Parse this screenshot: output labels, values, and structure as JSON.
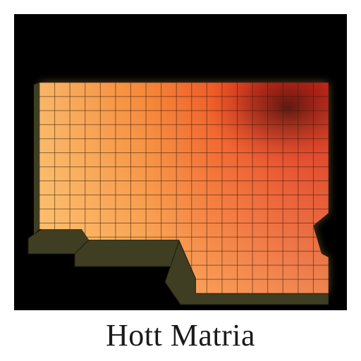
{
  "caption": "Hott Matria",
  "heatmap": {
    "rows": 15,
    "cols": 19,
    "grid_on": true,
    "colors": {
      "background": "#000000",
      "base_warm": "#f7a54f",
      "mid_orange": "#f26a2c",
      "hot_red": "#e0311f",
      "hot_spot": "#5a0e0a",
      "gridline": "#3a1a0a",
      "ledge": "#3f3d22",
      "glow": "#ffd27a"
    }
  }
}
